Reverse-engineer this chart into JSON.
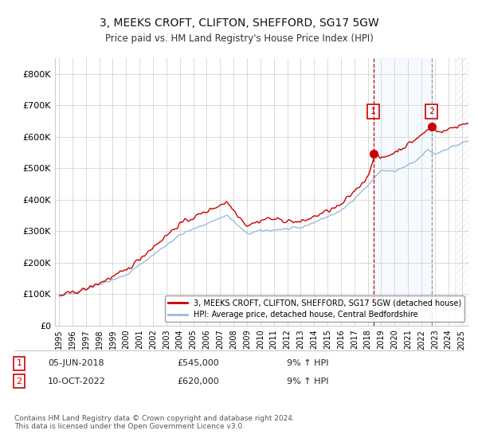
{
  "title": "3, MEEKS CROFT, CLIFTON, SHEFFORD, SG17 5GW",
  "subtitle": "Price paid vs. HM Land Registry's House Price Index (HPI)",
  "ylim": [
    0,
    850000
  ],
  "yticks": [
    0,
    100000,
    200000,
    300000,
    400000,
    500000,
    600000,
    700000,
    800000
  ],
  "ytick_labels": [
    "£0",
    "£100K",
    "£200K",
    "£300K",
    "£400K",
    "£500K",
    "£600K",
    "£700K",
    "£800K"
  ],
  "legend_entries": [
    "3, MEEKS CROFT, CLIFTON, SHEFFORD, SG17 5GW (detached house)",
    "HPI: Average price, detached house, Central Bedfordshire"
  ],
  "legend_colors": [
    "#cc0000",
    "#99bbdd"
  ],
  "footer": "Contains HM Land Registry data © Crown copyright and database right 2024.\nThis data is licensed under the Open Government Licence v3.0.",
  "background_color": "#ffffff",
  "grid_color": "#cccccc",
  "hpi_color": "#99bbdd",
  "price_color": "#cc0000",
  "marker1_x": 2018.42,
  "marker2_x": 2022.75,
  "marker1_y": 545000,
  "marker2_y": 632000,
  "shade_color": "#ddeeff",
  "xlim_left": 1994.7,
  "xlim_right": 2025.5
}
